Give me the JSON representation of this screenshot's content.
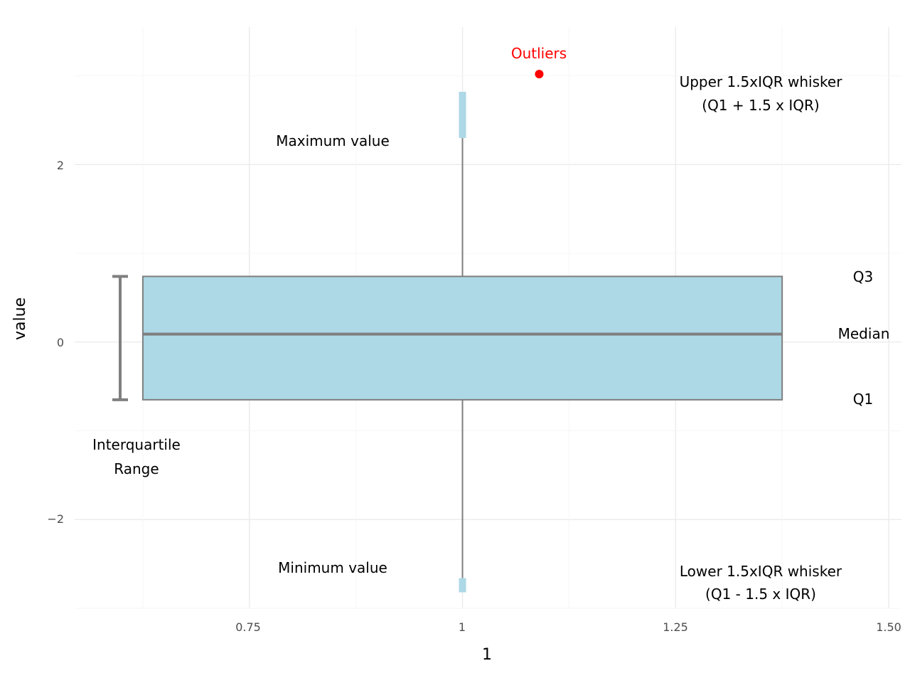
{
  "chart_data": {
    "type": "box",
    "xlabel": "1",
    "ylabel": "value",
    "x_ticks": [
      "0.75",
      "1",
      "1.25",
      "1.50"
    ],
    "x_tick_values": [
      0.75,
      1.0,
      1.25,
      1.5
    ],
    "y_ticks": [
      "−2",
      "0",
      "2"
    ],
    "y_tick_values": [
      -2,
      0,
      2
    ],
    "xlim": [
      0.545,
      1.515
    ],
    "ylim": [
      -3.0,
      3.55
    ],
    "grid": true,
    "box": {
      "x": 1.0,
      "width": 0.75,
      "q1": -0.65,
      "median": 0.09,
      "q3": 0.74,
      "whisker_high": 2.3,
      "whisker_low": -2.66,
      "fill": "#add8e6",
      "edge": "#7f7f7f"
    },
    "upper_tail": [
      2.3,
      2.82
    ],
    "lower_tail": [
      -2.66,
      -2.82
    ],
    "outliers": [
      {
        "x": 1.09,
        "y": 3.02
      }
    ],
    "annotations": {
      "outliers": "Outliers",
      "upper_whisker_line1": "Upper 1.5xIQR whisker",
      "upper_whisker_line2": "(Q1 + 1.5 x IQR)",
      "maximum": "Maximum value",
      "q3": "Q3",
      "median": "Median",
      "q1": "Q1",
      "iqr_line1": "Interquartile",
      "iqr_line2": "Range",
      "minimum": "Minimum value",
      "lower_whisker_line1": "Lower 1.5xIQR whisker",
      "lower_whisker_line2": "(Q1 - 1.5 x IQR)"
    },
    "colors": {
      "outlier": "#ff0000",
      "outlier_label": "#ff0000",
      "tail": "#add8e6",
      "whisker": "#7f7f7f",
      "iqr_bracket": "#7f7f7f"
    }
  }
}
